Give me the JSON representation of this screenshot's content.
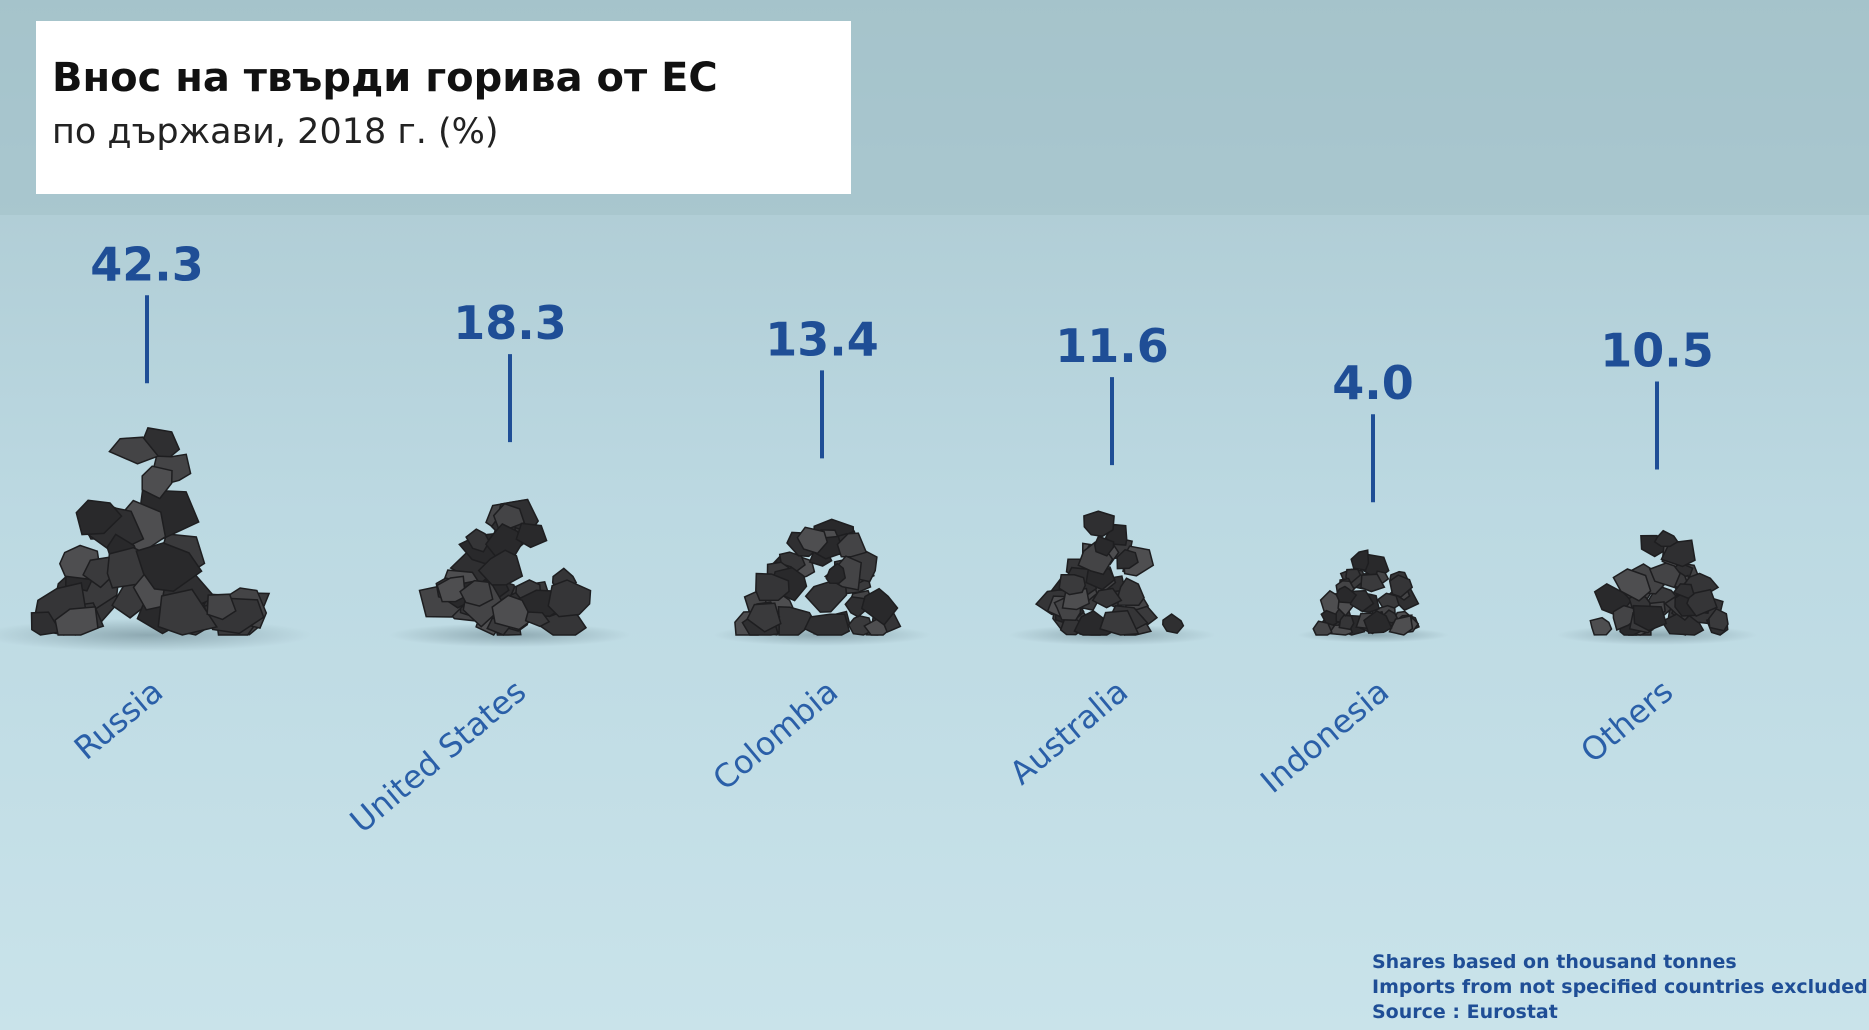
{
  "chart_data": {
    "type": "pile",
    "title": "Внос на твърди горива от ЕС",
    "subtitle": "по държави, 2018 г. (%)",
    "categories": [
      "Russia",
      "United States",
      "Colombia",
      "Australia",
      "Indonesia",
      "Others"
    ],
    "values": [
      42.3,
      18.3,
      13.4,
      11.6,
      4.0,
      10.5
    ],
    "value_labels": [
      "42.3",
      "18.3",
      "13.4",
      "11.6",
      "4.0",
      "10.5"
    ],
    "color": "#3a3a3c",
    "notes": [
      "Shares based on thousand tonnes",
      "Imports from not specified countries excluded",
      "Source : Eurostat"
    ]
  }
}
